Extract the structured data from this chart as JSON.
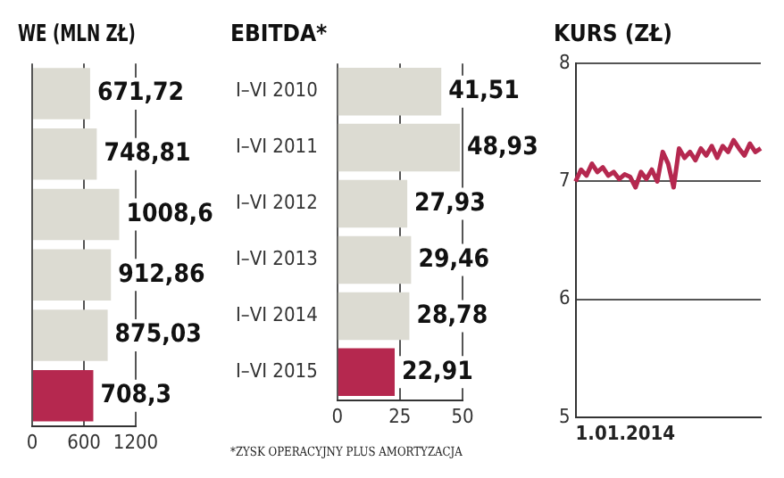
{
  "chart_data": [
    {
      "type": "bar",
      "orientation": "horizontal",
      "title": "WE (MLN ZŁ)",
      "categories": [
        null,
        null,
        null,
        null,
        null,
        null
      ],
      "values": [
        671.72,
        748.81,
        1008.6,
        912.86,
        875.03,
        708.3
      ],
      "colors": [
        "#dcdbd2",
        "#dcdbd2",
        "#dcdbd2",
        "#dcdbd2",
        "#dcdbd2",
        "#b5284f"
      ],
      "value_labels": [
        "671,72",
        "748,81",
        "1008,6",
        "912,86",
        "875,03",
        "708,3"
      ],
      "xlim": [
        0,
        1200
      ],
      "xticks": [
        0,
        600,
        1200
      ],
      "grid": "x",
      "tick_labels": "x"
    },
    {
      "type": "bar",
      "orientation": "horizontal",
      "title": "EBITDA*",
      "categories": [
        "I–VI 2010",
        "I–VI 2011",
        "I–VI 2012",
        "I–VI 2013",
        "I–VI 2014",
        "I–VI 2015"
      ],
      "values": [
        41.51,
        48.93,
        27.93,
        29.46,
        28.78,
        22.91
      ],
      "colors": [
        "#dcdbd2",
        "#dcdbd2",
        "#dcdbd2",
        "#dcdbd2",
        "#dcdbd2",
        "#b5284f"
      ],
      "value_labels": [
        "41,51",
        "48,93",
        "27,93",
        "29,46",
        "28,78",
        "22,91"
      ],
      "xlim": [
        0,
        50
      ],
      "xticks": [
        0,
        25,
        50
      ],
      "grid": "x",
      "annotations": [
        "*ZYSK OPERACYJNY PLUS AMORTYZACJA"
      ]
    },
    {
      "type": "line",
      "title": "KURS (ZŁ)",
      "color": "#b5284f",
      "marker": "none",
      "grid": "y",
      "ylim": [
        5,
        8
      ],
      "yticks": [
        5,
        6,
        7,
        8
      ],
      "tick_labels": "y",
      "annotations": [
        "1.01.2014"
      ],
      "categories": [
        null,
        null,
        null,
        null,
        null,
        null,
        null,
        null,
        null,
        null,
        null,
        null,
        null,
        null,
        null,
        null,
        null,
        null,
        null,
        null,
        null,
        null,
        null,
        null,
        null,
        null,
        null,
        null,
        null,
        null,
        null,
        null,
        null,
        null,
        null
      ],
      "values": [
        7.0,
        7.1,
        7.05,
        7.15,
        7.08,
        7.12,
        7.05,
        7.08,
        7.02,
        7.06,
        7.04,
        6.95,
        7.08,
        7.02,
        7.1,
        7.0,
        7.25,
        7.15,
        6.95,
        7.28,
        7.2,
        7.25,
        7.18,
        7.28,
        7.22,
        7.3,
        7.2,
        7.3,
        7.25,
        7.35,
        7.28,
        7.22,
        7.32,
        7.25,
        7.28
      ]
    }
  ]
}
